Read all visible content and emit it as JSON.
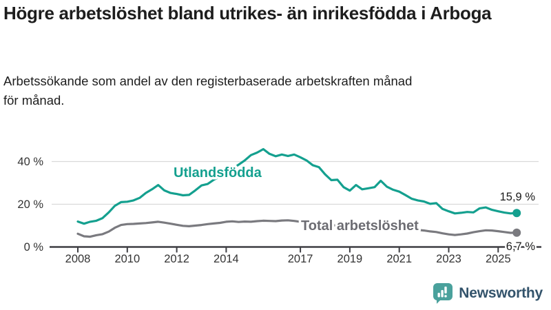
{
  "header": {
    "title": "Högre arbetslöshet bland utrikes- än inrikesfödda i Arboga",
    "subtitle": "Arbetssökande som andel av den registerbaserade arbetskraften månad för månad."
  },
  "footer": {
    "brand": "Newsworthy"
  },
  "colors": {
    "series_utlandsfodda": "#14a08f",
    "series_total": "#7a7a7f",
    "total_label": "#6c6c72",
    "grid": "#d9d9d9",
    "axis": "#3d3d42",
    "axis_text": "#333333",
    "end_label_text": "#1a1a1a",
    "title_text": "#1d1d1d",
    "logo_icon": "#4aa19c",
    "logo_text": "#33536b"
  },
  "chart_data": {
    "type": "line",
    "title": "Högre arbetslöshet bland utrikes- än inrikesfödda i Arboga",
    "subtitle": "Arbetssökande som andel av den registerbaserade arbetskraften månad för månad.",
    "unit": "%",
    "x_start": 2008,
    "x_step_years": 0.25,
    "x_ticks": [
      {
        "year": 2008,
        "label": "2008"
      },
      {
        "year": 2010,
        "label": "2010"
      },
      {
        "year": 2012,
        "label": "2012"
      },
      {
        "year": 2014,
        "label": "2014"
      },
      {
        "year": 2017,
        "label": "2017"
      },
      {
        "year": 2019,
        "label": "2019"
      },
      {
        "year": 2021,
        "label": "2021"
      },
      {
        "year": 2023,
        "label": "2023"
      },
      {
        "year": 2025,
        "label": "2025"
      }
    ],
    "y_ticks": [
      {
        "value": 0,
        "label": "0 %"
      },
      {
        "value": 20,
        "label": "20 %"
      },
      {
        "value": 40,
        "label": "40 %"
      }
    ],
    "ylim": [
      0,
      48
    ],
    "grid": "horizontal-only",
    "legend_position": "inline-labels",
    "series": [
      {
        "name": "Utlandsfödda",
        "color": "#14a08f",
        "label_color": "#14a08f",
        "end_label": "15,9 %",
        "end_value": 15.9,
        "values": [
          11.9,
          10.9,
          11.8,
          12.3,
          13.5,
          16.2,
          19.3,
          21.0,
          21.2,
          21.8,
          23.0,
          25.3,
          27.0,
          29.0,
          26.5,
          25.3,
          24.8,
          24.2,
          24.4,
          26.5,
          28.8,
          29.5,
          31.5,
          33.0,
          34.5,
          36.5,
          38.5,
          40.5,
          43.0,
          44.2,
          45.8,
          43.6,
          42.5,
          43.3,
          42.6,
          43.3,
          42.0,
          40.5,
          38.3,
          37.4,
          34.0,
          31.3,
          31.5,
          28.0,
          26.4,
          29.0,
          27.0,
          27.5,
          28.0,
          31.0,
          28.2,
          26.8,
          25.9,
          24.3,
          22.6,
          21.8,
          21.3,
          20.2,
          20.5,
          17.8,
          16.7,
          15.7,
          16.0,
          16.4,
          16.2,
          18.1,
          18.5,
          17.4,
          16.7,
          16.1,
          15.7,
          15.9
        ]
      },
      {
        "name": "Total arbetslöshet",
        "color": "#7a7a7f",
        "label_color": "#6c6c72",
        "end_label": "6,7 %",
        "end_value": 6.7,
        "values": [
          6.2,
          5.0,
          4.8,
          5.5,
          6.0,
          7.2,
          9.0,
          10.3,
          10.7,
          10.8,
          11.0,
          11.2,
          11.5,
          11.8,
          11.4,
          10.9,
          10.4,
          9.9,
          9.7,
          10.0,
          10.3,
          10.7,
          11.0,
          11.3,
          11.8,
          12.0,
          11.7,
          11.9,
          11.8,
          12.1,
          12.3,
          12.2,
          12.1,
          12.4,
          12.5,
          12.2,
          11.8,
          11.5,
          11.2,
          11.0,
          10.6,
          10.3,
          10.0,
          9.8,
          9.6,
          9.4,
          9.3,
          9.2,
          9.4,
          10.2,
          10.0,
          9.6,
          9.2,
          8.8,
          8.4,
          8.0,
          7.7,
          7.3,
          7.0,
          6.4,
          5.9,
          5.6,
          5.9,
          6.3,
          6.9,
          7.4,
          7.8,
          7.7,
          7.4,
          7.0,
          6.6,
          6.7
        ]
      }
    ]
  }
}
